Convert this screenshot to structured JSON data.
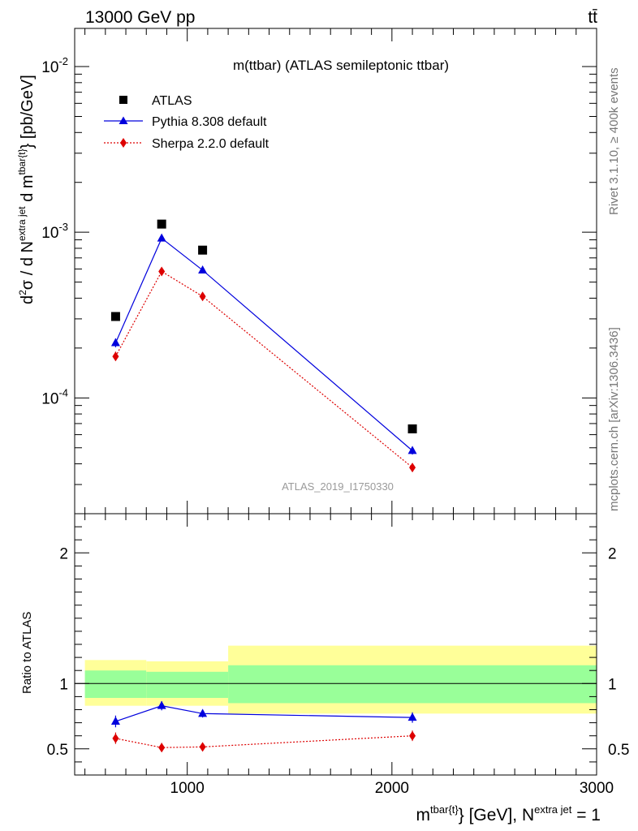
{
  "header": {
    "energy_label": "13000 GeV pp",
    "process_label": "tt̄"
  },
  "side_text": {
    "rivet": "Rivet 3.1.10, ≥ 400k events",
    "mcplots": "mcplots.cern.ch [arXiv:1306.3436]"
  },
  "chart_data": [
    {
      "type": "scatter",
      "title": "m(ttbar) (ATLAS semileptonic ttbar)",
      "watermark": "ATLAS_2019_I1750330",
      "ylabel": "d²σ / d N^{extra jet} d m^{tbar{t}} [pb/GeV]",
      "yscale": "log",
      "xlim": [
        450,
        3000
      ],
      "ylim": [
        2e-05,
        0.017
      ],
      "x_ticks": [
        1000,
        2000,
        3000
      ],
      "y_tick_labels": [
        "10^-2",
        "10^-3",
        "10^-4"
      ],
      "legend_position": "top-left",
      "series": [
        {
          "name": "ATLAS",
          "color": "#000000",
          "marker": "square",
          "x": [
            650,
            875,
            1075,
            2100
          ],
          "y": [
            0.00031,
            0.00112,
            0.00078,
            6.5e-05
          ]
        },
        {
          "name": "Pythia 8.308 default",
          "color": "#0000dd",
          "marker": "triangle",
          "line": "solid",
          "x": [
            650,
            875,
            1075,
            2100
          ],
          "y": [
            0.000215,
            0.00092,
            0.00059,
            4.8e-05
          ],
          "yerr": [
            1.3e-05,
            4e-05,
            2.5e-05,
            2.5e-06
          ]
        },
        {
          "name": "Sherpa 2.2.0 default",
          "color": "#dd0000",
          "marker": "diamond",
          "line": "dotted",
          "x": [
            650,
            875,
            1075,
            2100
          ],
          "y": [
            0.000178,
            0.00058,
            0.00041,
            3.8e-05
          ],
          "yerr": [
            1.2e-05,
            3e-05,
            2e-05,
            2.2e-06
          ]
        }
      ]
    },
    {
      "type": "scatter",
      "ylabel": "Ratio to ATLAS",
      "xlabel": "m^{tbar{t}} [GeV], N^{extra jet} = 1",
      "xlim": [
        450,
        3000
      ],
      "ylim": [
        0.3,
        2.3
      ],
      "x_ticks": [
        1000,
        2000,
        3000
      ],
      "y_ticks": [
        0.5,
        1,
        2
      ],
      "bands": [
        {
          "x": [
            500,
            800
          ],
          "stat": [
            0.89,
            1.1
          ],
          "total": [
            0.83,
            1.18
          ]
        },
        {
          "x": [
            800,
            1200
          ],
          "stat": [
            0.89,
            1.09
          ],
          "total": [
            0.83,
            1.17
          ]
        },
        {
          "x": [
            1200,
            3000
          ],
          "stat": [
            0.85,
            1.14
          ],
          "total": [
            0.77,
            1.29
          ]
        }
      ],
      "band_colors": {
        "stat": "#99ff99",
        "total": "#ffff99"
      },
      "series": [
        {
          "name": "Pythia 8.308 default",
          "color": "#0000dd",
          "marker": "triangle",
          "line": "solid",
          "x": [
            650,
            875,
            1075,
            2100
          ],
          "y": [
            0.71,
            0.83,
            0.77,
            0.74
          ],
          "yerr": [
            0.045,
            0.035,
            0.03,
            0.04
          ]
        },
        {
          "name": "Sherpa 2.2.0 default",
          "color": "#dd0000",
          "marker": "diamond",
          "line": "dotted",
          "x": [
            650,
            875,
            1075,
            2100
          ],
          "y": [
            0.58,
            0.51,
            0.515,
            0.6
          ],
          "yerr": [
            0.045,
            0.035,
            0.03,
            0.04
          ]
        }
      ]
    }
  ]
}
